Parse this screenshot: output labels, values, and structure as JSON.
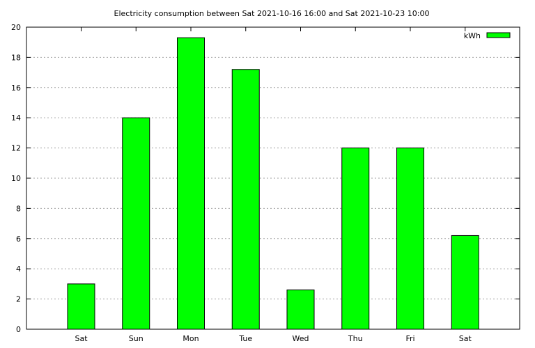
{
  "chart_data": {
    "type": "bar",
    "title": "Electricity consumption between Sat 2021-10-16 16:00 and Sat 2021-10-23 10:00",
    "xlabel": "",
    "ylabel": "",
    "categories": [
      "Sat",
      "Sun",
      "Mon",
      "Tue",
      "Wed",
      "Thu",
      "Fri",
      "Sat"
    ],
    "series": [
      {
        "name": "kWh",
        "values": [
          3.0,
          14.0,
          19.3,
          17.2,
          2.6,
          12.0,
          12.0,
          6.2
        ]
      }
    ],
    "ylim": [
      0,
      20
    ],
    "yticks": [
      0,
      2,
      4,
      6,
      8,
      10,
      12,
      14,
      16,
      18,
      20
    ],
    "grid": true,
    "legend_position": "top-right",
    "colors": {
      "bar_fill": "#00ff00",
      "bar_stroke": "#000000",
      "grid": "#a0a0a0"
    }
  }
}
